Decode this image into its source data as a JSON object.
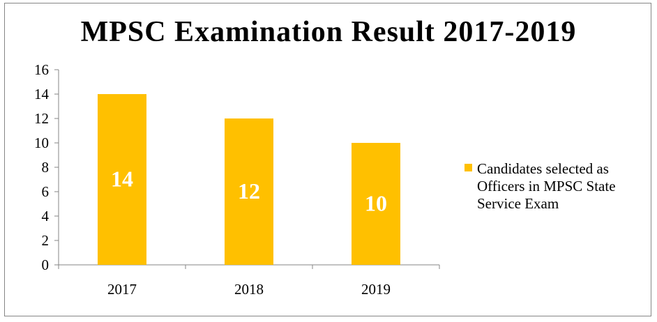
{
  "colors": {
    "bar": "#FFC000",
    "axis": "#868686",
    "text": "#000000",
    "data_label": "#ffffff"
  },
  "chart_data": {
    "type": "bar",
    "title": "MPSC Examination Result 2017-2019",
    "categories": [
      "2017",
      "2018",
      "2019"
    ],
    "series": [
      {
        "name": "Candidates selected as Officers in MPSC State Service Exam",
        "values": [
          14,
          12,
          10
        ]
      }
    ],
    "data_labels": [
      "14",
      "12",
      "10"
    ],
    "y_ticks": [
      "0",
      "2",
      "4",
      "6",
      "8",
      "10",
      "12",
      "14",
      "16"
    ],
    "ylim": [
      0,
      16
    ],
    "xlabel": "",
    "ylabel": "",
    "grid": false,
    "legend_position": "right"
  }
}
